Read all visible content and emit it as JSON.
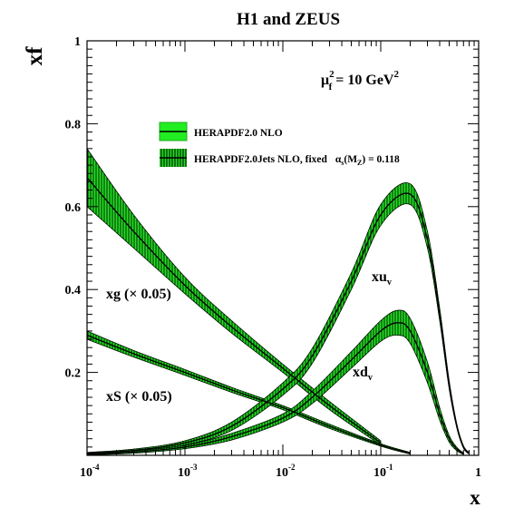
{
  "chart_data": {
    "type": "line",
    "title": "H1 and ZEUS",
    "xlabel": "x",
    "ylabel": "xf",
    "x_scale": "log",
    "xlim": [
      0.0001,
      1
    ],
    "ylim": [
      0,
      1
    ],
    "grid": false,
    "x_ticks": [
      {
        "value": 0.0001,
        "base": "10",
        "exp": "-4"
      },
      {
        "value": 0.001,
        "base": "10",
        "exp": "-3"
      },
      {
        "value": 0.01,
        "base": "10",
        "exp": "-2"
      },
      {
        "value": 0.1,
        "base": "10",
        "exp": "-1"
      },
      {
        "value": 1,
        "base": "1",
        "exp": ""
      }
    ],
    "y_ticks": [
      {
        "value": 0.2,
        "label": "0.2"
      },
      {
        "value": 0.4,
        "label": "0.4"
      },
      {
        "value": 0.6,
        "label": "0.6"
      },
      {
        "value": 0.8,
        "label": "0.8"
      },
      {
        "value": 1.0,
        "label": "1"
      }
    ],
    "scale_annotation": {
      "text": "μ",
      "sup": "2",
      "sub": "f",
      "rest": "= 10 GeV",
      "rest_sup": "2"
    },
    "legend": {
      "position": "top-center",
      "entries": [
        {
          "label": "HERAPDF2.0 NLO",
          "style": "green-band"
        },
        {
          "label": "HERAPDF2.0Jets NLO, fixed",
          "alpha_text": "α",
          "alpha_sub": "s",
          "alpha_mid": "(M",
          "alpha_sub2": "Z",
          "alpha_end": ") = 0.118",
          "style": "hatched-band"
        }
      ]
    },
    "series": [
      {
        "name": "xg (× 0.05)",
        "label_main": "xg (× 0.05)",
        "x": [
          0.0001,
          0.0003,
          0.001,
          0.003,
          0.01,
          0.03,
          0.1
        ],
        "y": [
          0.67,
          0.54,
          0.41,
          0.31,
          0.21,
          0.12,
          0.03
        ],
        "err": [
          0.07,
          0.04,
          0.02,
          0.015,
          0.01,
          0.01,
          0.005
        ]
      },
      {
        "name": "xS (× 0.05)",
        "label_main": "xS (× 0.05)",
        "x": [
          0.0001,
          0.0003,
          0.001,
          0.003,
          0.01,
          0.03,
          0.1,
          0.2
        ],
        "y": [
          0.29,
          0.245,
          0.2,
          0.158,
          0.115,
          0.07,
          0.025,
          0.005
        ],
        "err": [
          0.01,
          0.008,
          0.007,
          0.006,
          0.005,
          0.005,
          0.003,
          0.002
        ]
      },
      {
        "name": "xu_v",
        "label_main": "xu",
        "label_sub": "v",
        "x": [
          0.0001,
          0.0003,
          0.001,
          0.003,
          0.01,
          0.02,
          0.05,
          0.1,
          0.2,
          0.3,
          0.4,
          0.5,
          0.6,
          0.7,
          0.8
        ],
        "y": [
          0.005,
          0.012,
          0.03,
          0.07,
          0.16,
          0.24,
          0.42,
          0.58,
          0.63,
          0.52,
          0.34,
          0.17,
          0.07,
          0.02,
          0.005
        ],
        "err": [
          0.002,
          0.003,
          0.005,
          0.01,
          0.015,
          0.018,
          0.02,
          0.025,
          0.025,
          0.02,
          0.015,
          0.01,
          0.005,
          0.003,
          0.002
        ]
      },
      {
        "name": "xd_v",
        "label_main": "xd",
        "label_sub": "v",
        "x": [
          0.0001,
          0.0003,
          0.001,
          0.003,
          0.01,
          0.02,
          0.05,
          0.1,
          0.15,
          0.2,
          0.3,
          0.4,
          0.5,
          0.6,
          0.7
        ],
        "y": [
          0.003,
          0.008,
          0.02,
          0.045,
          0.09,
          0.14,
          0.23,
          0.3,
          0.32,
          0.3,
          0.2,
          0.1,
          0.04,
          0.015,
          0.004
        ],
        "err": [
          0.002,
          0.003,
          0.004,
          0.008,
          0.01,
          0.015,
          0.02,
          0.025,
          0.03,
          0.03,
          0.025,
          0.015,
          0.008,
          0.004,
          0.002
        ]
      }
    ]
  }
}
